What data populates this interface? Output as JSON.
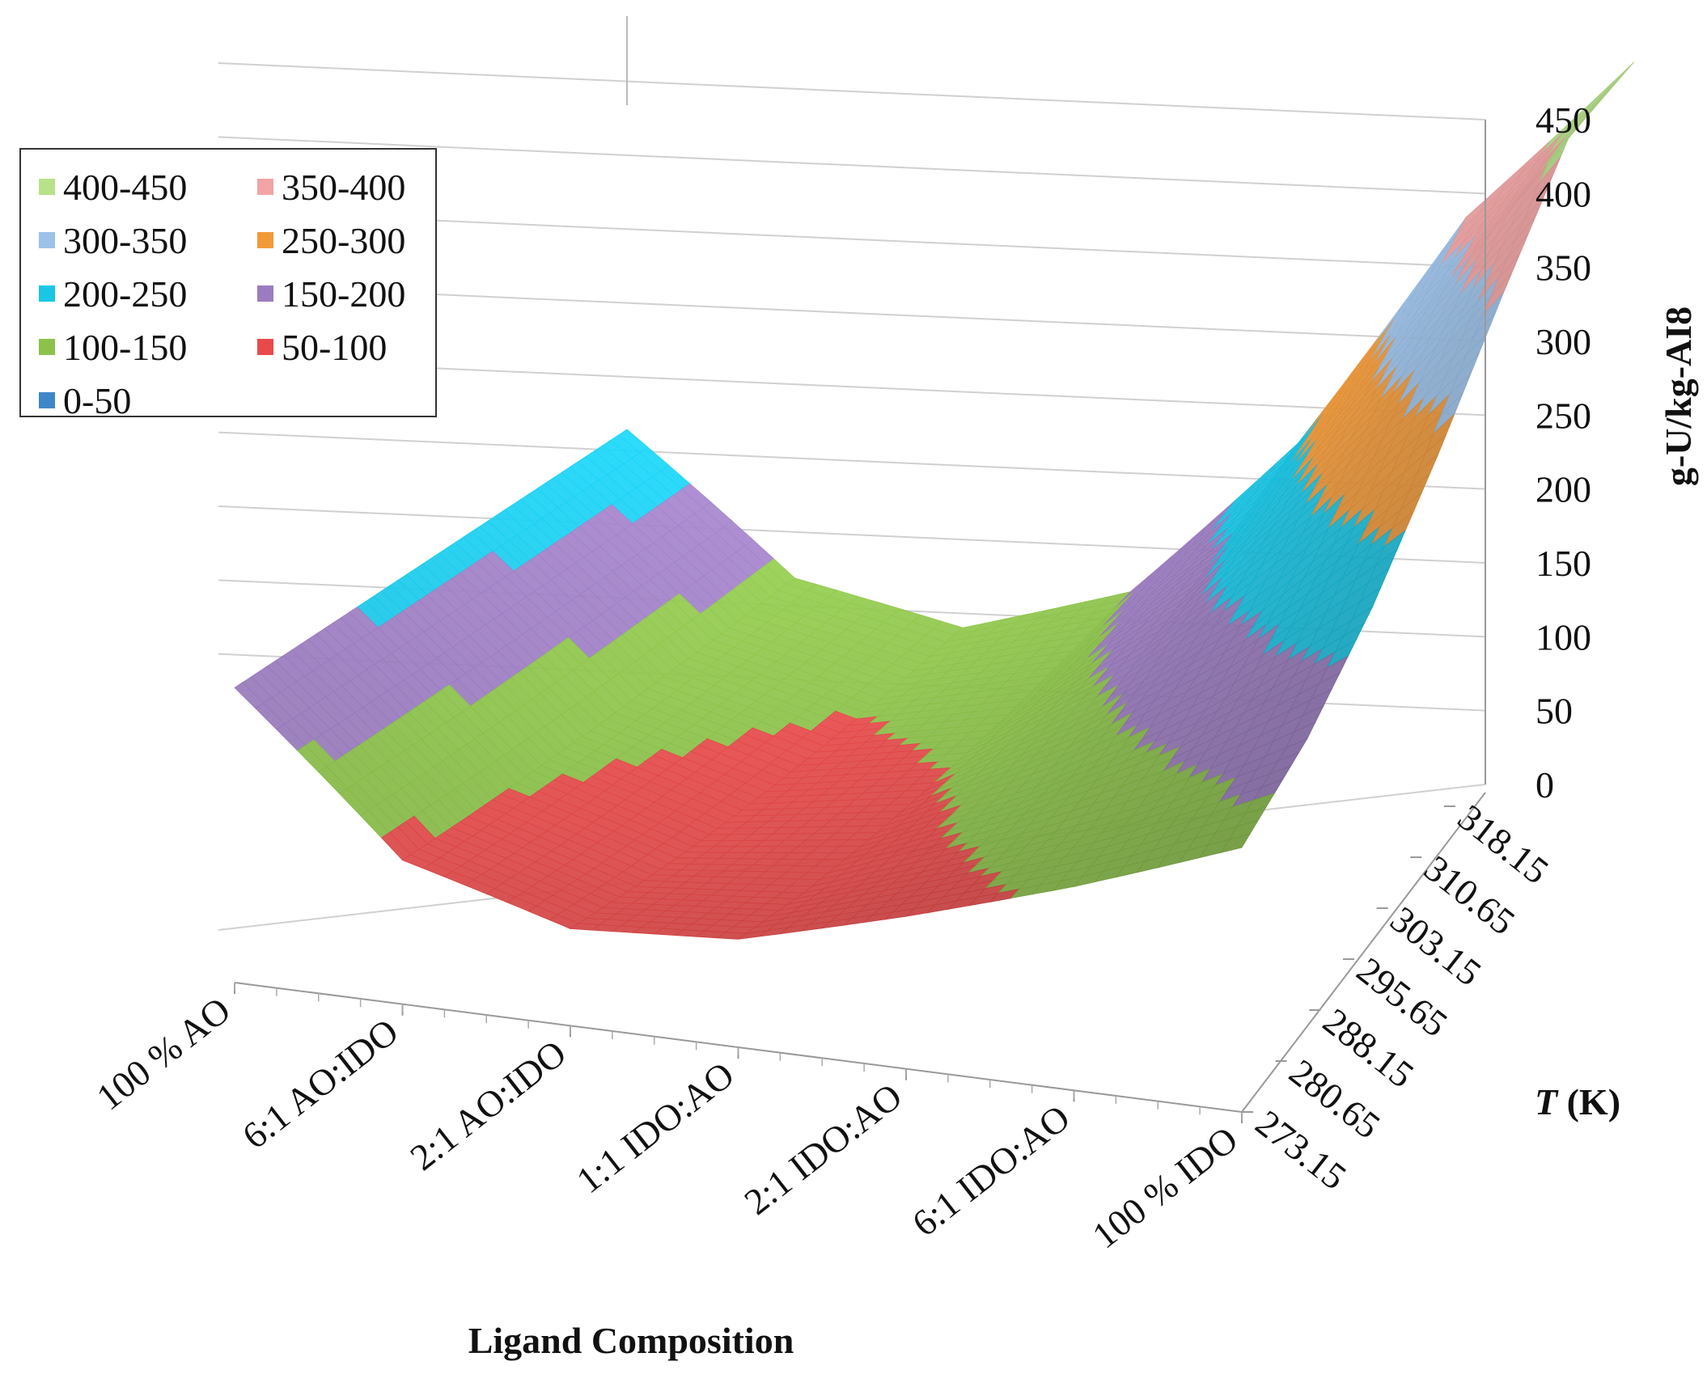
{
  "chart_data": {
    "type": "surface",
    "title": "",
    "xlabel": "Ligand Composition",
    "ylabel": "g-U/kg-AI8",
    "zlabel_italic": "T",
    "zlabel_unit": " (K)",
    "categories": [
      "100 % AO",
      "6:1 AO:IDO",
      "2:1 AO:IDO",
      "1:1 IDO:AO",
      "2:1 IDO:AO",
      "6:1 IDO:AO",
      "100 % IDO"
    ],
    "temperatures": [
      "273.15",
      "280.65",
      "288.15",
      "295.65",
      "303.15",
      "310.65",
      "318.15"
    ],
    "ylim": [
      0,
      450
    ],
    "yticks": [
      "0",
      "50",
      "100",
      "150",
      "200",
      "250",
      "300",
      "350",
      "400",
      "450"
    ],
    "legend": [
      {
        "label": "400-450",
        "color": "#b7e28a"
      },
      {
        "label": "350-400",
        "color": "#f2a3a3"
      },
      {
        "label": "300-350",
        "color": "#9cc2ea"
      },
      {
        "label": "250-300",
        "color": "#f29a3a"
      },
      {
        "label": "200-250",
        "color": "#19c6e6"
      },
      {
        "label": "150-200",
        "color": "#9b7cc0"
      },
      {
        "label": "100-150",
        "color": "#8cc24a"
      },
      {
        "label": "50-100",
        "color": "#e84a4a"
      },
      {
        "label": "0-50",
        "color": "#3f86c9"
      }
    ],
    "band_colors": [
      "#3f86c9",
      "#e84a4a",
      "#8cc24a",
      "#9b7cc0",
      "#19c6e6",
      "#f29a3a",
      "#9cc2ea",
      "#f2a3a3",
      "#b7e28a"
    ],
    "series": [
      {
        "name": "273.15",
        "values": [
          193,
          90,
          58,
          62,
          84,
          108,
          135
        ]
      },
      {
        "name": "280.65",
        "values": [
          200,
          97,
          64,
          70,
          100,
          133,
          174
        ]
      },
      {
        "name": "288.15",
        "values": [
          207,
          105,
          72,
          82,
          120,
          167,
          225
        ]
      },
      {
        "name": "295.65",
        "values": [
          214,
          114,
          82,
          96,
          146,
          210,
          286
        ]
      },
      {
        "name": "303.15",
        "values": [
          221,
          124,
          94,
          112,
          176,
          261,
          352
        ]
      },
      {
        "name": "310.65",
        "values": [
          228,
          134,
          107,
          130,
          206,
          311,
          415
        ]
      },
      {
        "name": "318.15",
        "values": [
          235,
          145,
          122,
          150,
          238,
          360,
          437
        ]
      }
    ]
  }
}
